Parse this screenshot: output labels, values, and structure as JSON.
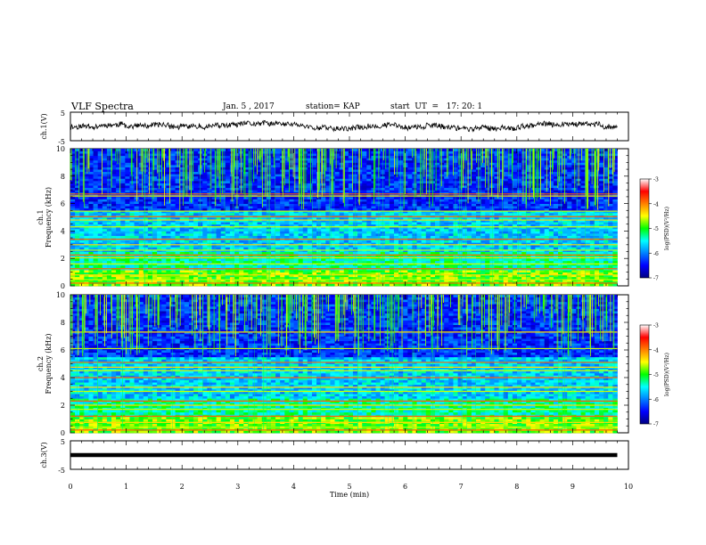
{
  "header": {
    "title": "VLF Spectra",
    "date": "Jan. 5 , 2017",
    "station": "station= KAP",
    "start": "start  UT  =   17: 20: 1"
  },
  "chart_data": [
    {
      "type": "line",
      "panel": "ch1-waveform",
      "ylabel": "ch.1(V)",
      "ylim": [
        -5,
        5
      ],
      "yticks": [
        "5",
        "-5"
      ],
      "xlim": [
        0,
        10
      ],
      "series_color": "#000000"
    },
    {
      "type": "heatmap",
      "panel": "ch1-spectrogram",
      "ylabel": "ch.1\nFrequency (kHz)",
      "ylabel_line1": "ch.1",
      "ylabel_line2": "Frequency (kHz)",
      "ylim": [
        0,
        10
      ],
      "yticks": [
        "0",
        "2",
        "4",
        "6",
        "8",
        "10"
      ],
      "xlim": [
        0,
        9.8
      ],
      "colorbar": {
        "label": "log(PSD)(V²/Hz)",
        "range": [
          -7,
          -3
        ],
        "ticks": [
          "-3",
          "-4",
          "-5",
          "-6",
          "-7"
        ],
        "colors": [
          "#000080",
          "#0000ff",
          "#0080ff",
          "#00ffff",
          "#00ff00",
          "#ffff00",
          "#ff8000",
          "#ff0000",
          "#ffffff"
        ]
      },
      "bands_khz": [
        0.2,
        0.45,
        0.8,
        1.25,
        1.6,
        2.05,
        2.25,
        2.6,
        3.0,
        3.4,
        4.3,
        4.8,
        5.05,
        5.45,
        6.55,
        6.7
      ]
    },
    {
      "type": "heatmap",
      "panel": "ch2-spectrogram",
      "ylabel": "ch.2\nFrequency (kHz)",
      "ylabel_line1": "ch.2",
      "ylabel_line2": "Frequency (kHz)",
      "ylim": [
        0,
        10
      ],
      "yticks": [
        "0",
        "2",
        "4",
        "6",
        "8",
        "10"
      ],
      "xlim": [
        0,
        9.8
      ],
      "colorbar": {
        "label": "log(PSD)(V²/Hz)",
        "range": [
          -7,
          -3
        ],
        "ticks": [
          "-3",
          "-4",
          "-5",
          "-6",
          "-7"
        ],
        "colors": [
          "#000080",
          "#0000ff",
          "#0080ff",
          "#00ffff",
          "#00ff00",
          "#ffff00",
          "#ff8000",
          "#ff0000",
          "#ffffff"
        ]
      },
      "bands_khz": [
        0.2,
        0.4,
        0.75,
        1.2,
        1.7,
        2.0,
        2.3,
        3.0,
        3.3,
        4.0,
        4.5,
        4.75,
        5.1,
        6.1,
        7.3
      ]
    },
    {
      "type": "line",
      "panel": "ch3-waveform",
      "ylabel": "ch.3(V)",
      "ylim": [
        -5,
        5
      ],
      "yticks": [
        "5",
        "-5"
      ],
      "xlim": [
        0,
        10
      ],
      "series": [
        {
          "x": [
            0,
            9.8
          ],
          "y": [
            0,
            0
          ]
        }
      ],
      "xlabel": "Time  (min)",
      "xticks": [
        "0",
        "1",
        "2",
        "3",
        "4",
        "5",
        "6",
        "7",
        "8",
        "9",
        "10"
      ]
    }
  ]
}
